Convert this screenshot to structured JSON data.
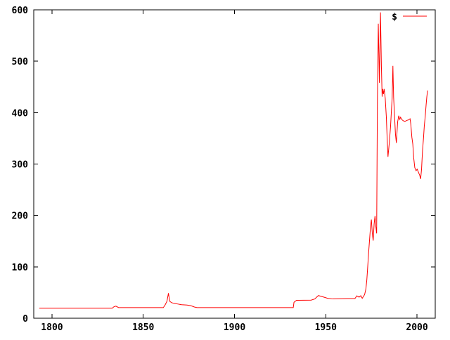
{
  "page": {
    "background": "#ffffff"
  },
  "chart_data": {
    "type": "line",
    "title": "",
    "xlabel": "",
    "ylabel": "",
    "xlim": [
      1790,
      2010
    ],
    "ylim": [
      0,
      600
    ],
    "xticks": [
      1800,
      1850,
      1900,
      1950,
      2000
    ],
    "yticks": [
      0,
      100,
      200,
      300,
      400,
      500,
      600
    ],
    "grid": false,
    "legend_position": "top-right-inside",
    "border_color": "#000000",
    "tick_label_color": "#000000",
    "series": [
      {
        "name": "$",
        "color": "#ff0000",
        "points": [
          [
            1793,
            19.4
          ],
          [
            1833,
            19.4
          ],
          [
            1834,
            22.5
          ],
          [
            1835,
            23.5
          ],
          [
            1836.5,
            20.7
          ],
          [
            1861,
            20.7
          ],
          [
            1862,
            26
          ],
          [
            1863,
            33
          ],
          [
            1863.8,
            48.7
          ],
          [
            1864.5,
            33
          ],
          [
            1865.5,
            30.3
          ],
          [
            1867,
            28.8
          ],
          [
            1869,
            27.6
          ],
          [
            1871,
            26.3
          ],
          [
            1874,
            25.7
          ],
          [
            1876,
            24.4
          ],
          [
            1877,
            23.2
          ],
          [
            1878,
            21.9
          ],
          [
            1879.5,
            20.7
          ],
          [
            1932.2,
            20.7
          ],
          [
            1932.6,
            31
          ],
          [
            1934,
            34.8
          ],
          [
            1942,
            35.2
          ],
          [
            1944,
            37.5
          ],
          [
            1945,
            41
          ],
          [
            1946,
            44.1
          ],
          [
            1947.5,
            42.5
          ],
          [
            1949,
            41
          ],
          [
            1951,
            38.8
          ],
          [
            1954,
            37.5
          ],
          [
            1958,
            38
          ],
          [
            1962,
            38.2
          ],
          [
            1966,
            38.2
          ],
          [
            1967,
            43.5
          ],
          [
            1968.3,
            41
          ],
          [
            1969.2,
            43.8
          ],
          [
            1970,
            38.8
          ],
          [
            1971.3,
            46
          ],
          [
            1972,
            57
          ],
          [
            1972.5,
            74
          ],
          [
            1973,
            100
          ],
          [
            1973.5,
            128
          ],
          [
            1974,
            152
          ],
          [
            1974.5,
            176
          ],
          [
            1975,
            192
          ],
          [
            1975.5,
            166
          ],
          [
            1976,
            151
          ],
          [
            1976.5,
            183
          ],
          [
            1977,
            199
          ],
          [
            1977.4,
            180
          ],
          [
            1977.9,
            165
          ],
          [
            1978.3,
            420
          ],
          [
            1978.8,
            573
          ],
          [
            1979.4,
            458
          ],
          [
            1980,
            595
          ],
          [
            1980.5,
            490
          ],
          [
            1980.9,
            431
          ],
          [
            1981.2,
            446
          ],
          [
            1981.6,
            436
          ],
          [
            1982,
            446
          ],
          [
            1982.6,
            428
          ],
          [
            1983.2,
            392
          ],
          [
            1983.6,
            355
          ],
          [
            1984.1,
            314
          ],
          [
            1984.8,
            340
          ],
          [
            1985.5,
            372
          ],
          [
            1986,
            405
          ],
          [
            1986.4,
            428
          ],
          [
            1986.8,
            491
          ],
          [
            1987.2,
            430
          ],
          [
            1987.6,
            401
          ],
          [
            1988.2,
            358
          ],
          [
            1988.7,
            341
          ],
          [
            1989.4,
            382
          ],
          [
            1990,
            394
          ],
          [
            1990.6,
            387
          ],
          [
            1991,
            391
          ],
          [
            1991.8,
            386
          ],
          [
            1992.6,
            384
          ],
          [
            1993.4,
            383
          ],
          [
            1994.5,
            385
          ],
          [
            1995.5,
            386
          ],
          [
            1996.2,
            388
          ],
          [
            1996.6,
            378
          ],
          [
            1997.2,
            352
          ],
          [
            1997.7,
            339
          ],
          [
            1998.2,
            312
          ],
          [
            1998.8,
            293
          ],
          [
            1999.5,
            287
          ],
          [
            2000.1,
            290
          ],
          [
            2000.8,
            284
          ],
          [
            2001.5,
            278
          ],
          [
            2002,
            271
          ],
          [
            2002.5,
            290
          ],
          [
            2003,
            324
          ],
          [
            2003.6,
            352
          ],
          [
            2004,
            374
          ],
          [
            2004.5,
            392
          ],
          [
            2005,
            415
          ],
          [
            2005.4,
            431
          ],
          [
            2005.8,
            443
          ]
        ]
      }
    ]
  }
}
